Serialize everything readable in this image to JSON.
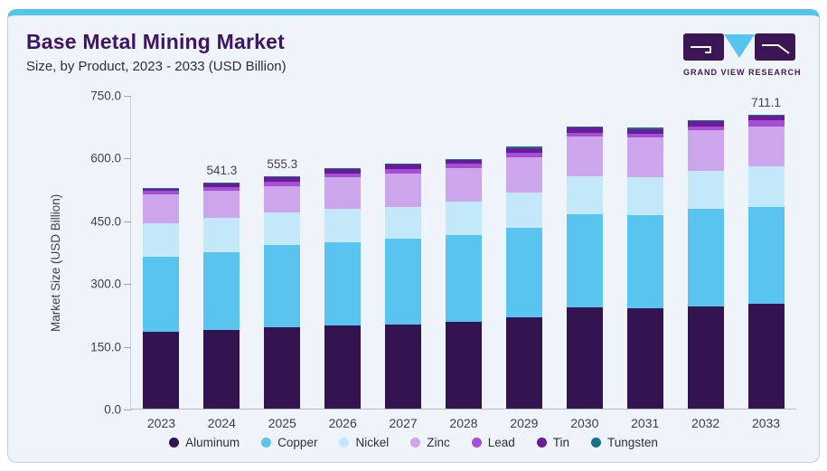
{
  "header": {
    "title": "Base Metal Mining Market",
    "subtitle": "Size, by Product, 2023 - 2033 (USD Billion)"
  },
  "logo": {
    "text": "GRAND VIEW RESEARCH"
  },
  "chart_data": {
    "type": "bar",
    "stacked": true,
    "title": "Base Metal Mining Market Size, by Product, 2023 - 2033 (USD Billion)",
    "categories": [
      "2023",
      "2024",
      "2025",
      "2026",
      "2027",
      "2028",
      "2029",
      "2030",
      "2031",
      "2032",
      "2033"
    ],
    "series": [
      {
        "name": "Aluminum",
        "color": "#331450",
        "values": [
          183.0,
          189.0,
          194.0,
          198.0,
          202.0,
          208.0,
          218.0,
          242.0,
          240.0,
          245.0,
          253.0
        ]
      },
      {
        "name": "Copper",
        "color": "#5ac4f0",
        "values": [
          181.1,
          186.0,
          196.8,
          199.0,
          205.0,
          207.0,
          214.0,
          223.0,
          223.0,
          232.0,
          235.0
        ]
      },
      {
        "name": "Nickel",
        "color": "#c3e8fa",
        "values": [
          79.0,
          81.0,
          79.0,
          81.0,
          75.0,
          80.0,
          85.0,
          90.0,
          90.0,
          91.0,
          99.0
        ]
      },
      {
        "name": "Zinc",
        "color": "#cda5ea",
        "values": [
          69.0,
          64.0,
          62.0,
          75.0,
          80.0,
          80.0,
          85.0,
          96.0,
          95.0,
          98.0,
          96.0
        ]
      },
      {
        "name": "Lead",
        "color": "#a44fd4",
        "values": [
          9.3,
          9.9,
          10.0,
          9.4,
          10.8,
          10.8,
          9.4,
          9.4,
          10.1,
          9.4,
          15.9
        ]
      },
      {
        "name": "Tin",
        "color": "#6a1b9a",
        "values": [
          4.3,
          9.0,
          11.0,
          10.0,
          11.0,
          8.0,
          12.0,
          11.0,
          10.5,
          12.0,
          9.4
        ]
      },
      {
        "name": "Tungsten",
        "color": "#16708e",
        "values": [
          1.8,
          2.4,
          2.5,
          2.0,
          2.5,
          2.5,
          2.8,
          2.8,
          2.7,
          3.0,
          2.8
        ]
      }
    ],
    "totals_labeled": {
      "2024": "541.3",
      "2025": "555.3",
      "2033": "711.1"
    },
    "bar_labels": [
      "",
      "541.3",
      "555.3",
      "",
      "",
      "",
      "",
      "",
      "",
      "",
      "711.1"
    ],
    "ylabel": "Market Size (USD Billion)",
    "yticks": [
      "750.0",
      "600.0",
      "450.0",
      "300.0",
      "150.0",
      "0.0"
    ],
    "ylim": [
      0,
      750
    ],
    "grid": false,
    "legend_position": "bottom"
  }
}
